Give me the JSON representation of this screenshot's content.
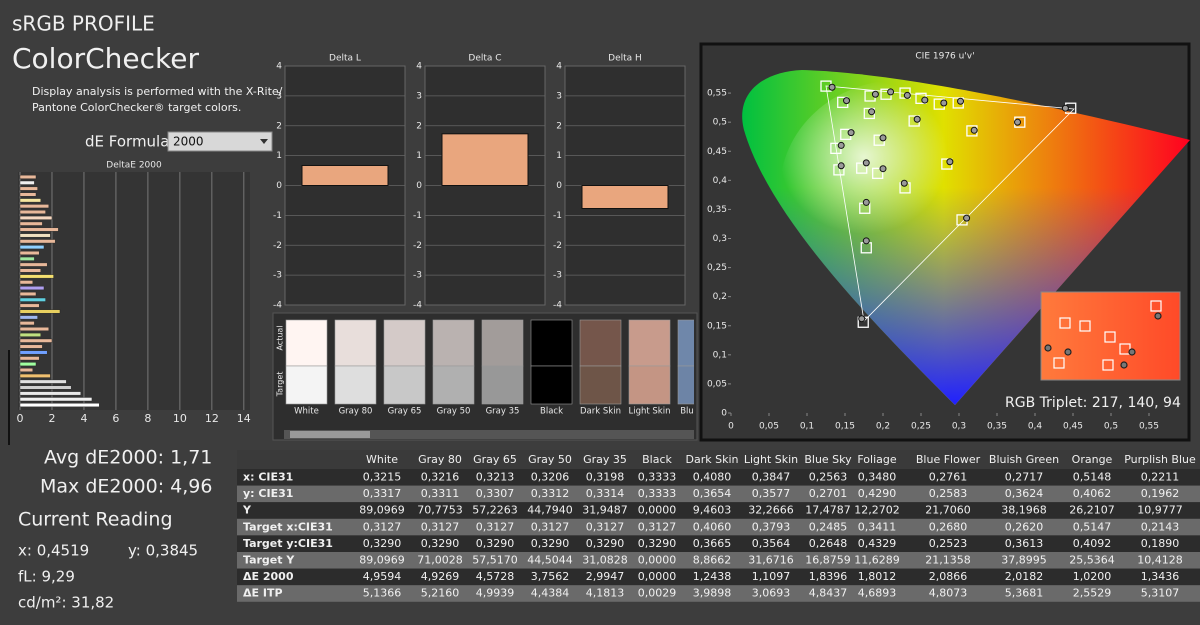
{
  "header": {
    "profile": "sRGB PROFILE",
    "title": "ColorChecker",
    "description": [
      "Display analysis is performed with the X-Rite/",
      "Pantone ColorChecker® target colors."
    ],
    "formula_label": "dE Formula:",
    "formula_value": "2000"
  },
  "summary": {
    "avg": "Avg dE2000: 1,71",
    "max": "Max dE2000: 4,96",
    "reading_title": "Current Reading",
    "x": "x: 0,4519",
    "y": "y: 0,3845",
    "fl": "fL: 9,29",
    "cdm2": "cd/m²: 31,82"
  },
  "chart_data": [
    {
      "type": "hbar",
      "title": "DeltaE 2000",
      "xlim": [
        0,
        14.2
      ],
      "xticks": [
        0,
        2,
        4,
        6,
        8,
        10,
        12,
        14
      ],
      "grid": true,
      "values": [
        1.0,
        0.9,
        1.1,
        1.0,
        1.3,
        1.8,
        1.6,
        2.0,
        1.4,
        2.4,
        1.9,
        2.2,
        1.5,
        1.2,
        0.9,
        1.7,
        1.3,
        2.1,
        0.8,
        1.5,
        1.0,
        1.6,
        1.2,
        2.5,
        1.1,
        0.9,
        1.8,
        1.3,
        2.0,
        1.4,
        1.7,
        1.2,
        1.0,
        0.8,
        1.9,
        2.9,
        3.2,
        3.8,
        4.5,
        4.96
      ],
      "colors": [
        "#e8b89a",
        "#f0f0f0",
        "#e8b89a",
        "#e8b89a",
        "#f5e6a0",
        "#e8b89a",
        "#e8b89a",
        "#f5d7c0",
        "#e8b89a",
        "#e8b89a",
        "#f0e0c0",
        "#e8b89a",
        "#8fd0ff",
        "#e8b89a",
        "#a0e8a0",
        "#e8b89a",
        "#e8b89a",
        "#f5e070",
        "#e8b89a",
        "#b0a0f0",
        "#e8b89a",
        "#60d0e0",
        "#e8b89a",
        "#e8d060",
        "#9fb8f0",
        "#e8b89a",
        "#e8b89a",
        "#c0e080",
        "#e8b89a",
        "#e8b89a",
        "#70a0ff",
        "#e8b89a",
        "#a0ffa0",
        "#e8b89a",
        "#f0c070",
        "#e0e0e0",
        "#d0d0d0",
        "#e8e8e8",
        "#f0f0f0",
        "#ffffff"
      ]
    },
    {
      "type": "vbar",
      "title": "Delta L",
      "ylim": [
        -4,
        4
      ],
      "yticks": [
        -4,
        -3,
        -2,
        -1,
        0,
        1,
        2,
        3,
        4
      ],
      "values": [
        0.67
      ],
      "color": "#e9a67e"
    },
    {
      "type": "vbar",
      "title": "Delta C",
      "ylim": [
        -4,
        4
      ],
      "yticks": [
        -4,
        -3,
        -2,
        -1,
        0,
        1,
        2,
        3,
        4
      ],
      "values": [
        1.73
      ],
      "color": "#e9a67e"
    },
    {
      "type": "vbar",
      "title": "Delta H",
      "ylim": [
        -4,
        4
      ],
      "yticks": [
        -4,
        -3,
        -2,
        -1,
        0,
        1,
        2,
        3,
        4
      ],
      "values": [
        -0.77
      ],
      "color": "#e9a67e"
    },
    {
      "type": "scatter",
      "title": "CIE 1976 u'v'",
      "xlim": [
        0,
        0.6
      ],
      "ylim": [
        0,
        0.6
      ],
      "xticks": [
        0,
        {
          "value": 0.05,
          "label": "0,05"
        },
        {
          "value": 0.1,
          "label": "0,1"
        },
        {
          "value": 0.15,
          "label": "0,15"
        },
        {
          "value": 0.2,
          "label": "0,2"
        },
        {
          "value": 0.25,
          "label": "0,25"
        },
        {
          "value": 0.3,
          "label": "0,3"
        },
        {
          "value": 0.35,
          "label": "0,35"
        },
        {
          "value": 0.4,
          "label": "0,4"
        },
        {
          "value": 0.45,
          "label": "0,45"
        },
        {
          "value": 0.5,
          "label": "0,5"
        },
        {
          "value": 0.55,
          "label": "0,55"
        }
      ],
      "yticks": [
        0,
        {
          "value": 0.05,
          "label": "0,05"
        },
        {
          "value": 0.1,
          "label": "0,1"
        },
        {
          "value": 0.15,
          "label": "0,15"
        },
        {
          "value": 0.2,
          "label": "0,2"
        },
        {
          "value": 0.25,
          "label": "0,25"
        },
        {
          "value": 0.3,
          "label": "0,3"
        },
        {
          "value": 0.35,
          "label": "0,35"
        },
        {
          "value": 0.4,
          "label": "0,4"
        },
        {
          "value": 0.45,
          "label": "0,45"
        },
        {
          "value": 0.5,
          "label": "0,5"
        },
        {
          "value": 0.55,
          "label": "0,55"
        }
      ],
      "series": [
        {
          "marker": "square",
          "color": "#ffffff",
          "x": [
            0.125,
            0.147,
            0.183,
            0.204,
            0.229,
            0.25,
            0.274,
            0.299,
            0.38,
            0.447,
            0.317,
            0.241,
            0.182,
            0.151,
            0.138,
            0.195,
            0.142,
            0.172,
            0.193,
            0.284,
            0.229,
            0.176,
            0.304,
            0.178,
            0.174
          ],
          "y": [
            0.562,
            0.534,
            0.545,
            0.548,
            0.55,
            0.541,
            0.531,
            0.533,
            0.5,
            0.524,
            0.485,
            0.502,
            0.515,
            0.479,
            0.455,
            0.469,
            0.418,
            0.421,
            0.412,
            0.428,
            0.387,
            0.352,
            0.332,
            0.284,
            0.156
          ]
        },
        {
          "marker": "circle",
          "color": "#9a9a9a",
          "x": [
            0.133,
            0.152,
            0.19,
            0.21,
            0.232,
            0.255,
            0.28,
            0.302,
            0.377,
            0.44,
            0.32,
            0.245,
            0.185,
            0.158,
            0.145,
            0.2,
            0.145,
            0.178,
            0.2,
            0.288,
            0.228,
            0.178,
            0.31,
            0.178,
            0.172
          ],
          "y": [
            0.56,
            0.537,
            0.548,
            0.552,
            0.546,
            0.538,
            0.533,
            0.536,
            0.5,
            0.524,
            0.486,
            0.505,
            0.518,
            0.482,
            0.46,
            0.473,
            0.425,
            0.43,
            0.42,
            0.432,
            0.395,
            0.362,
            0.335,
            0.296,
            0.162
          ]
        }
      ]
    }
  ],
  "inset_label": "RGB Triplet: 217, 140, 94",
  "swatches": {
    "actual_label": "Actual",
    "target_label": "Target",
    "names": [
      "White",
      "Gray 80",
      "Gray 65",
      "Gray 50",
      "Gray 35",
      "Black",
      "Dark Skin",
      "Light Skin",
      "Blue Sky"
    ],
    "actual_colors": [
      "#fff5f2",
      "#e8dedb",
      "#d4cac8",
      "#bab2b0",
      "#a29c9a",
      "#000000",
      "#75564b",
      "#c89b8c",
      "#6f87aa"
    ],
    "target_colors": [
      "#f4f4f4",
      "#dedede",
      "#c8c8c8",
      "#b0b0b0",
      "#989898",
      "#000000",
      "#6e5548",
      "#c49584",
      "#6d84a6"
    ]
  },
  "table": {
    "columns": [
      "White",
      "Gray 80",
      "Gray 65",
      "Gray 50",
      "Gray 35",
      "Black",
      "Dark Skin",
      "Light Skin",
      "Blue Sky",
      "Foliage",
      "Blue Flower",
      "Bluish Green",
      "Orange",
      "Purplish Blue"
    ],
    "rows": [
      [
        "x: CIE31",
        "0,3215",
        "0,3216",
        "0,3213",
        "0,3206",
        "0,3198",
        "0,3333",
        "0,4080",
        "0,3847",
        "0,2563",
        "0,3480",
        "0,2761",
        "0,2717",
        "0,5148",
        "0,2211"
      ],
      [
        "y: CIE31",
        "0,3317",
        "0,3311",
        "0,3307",
        "0,3312",
        "0,3314",
        "0,3333",
        "0,3654",
        "0,3577",
        "0,2701",
        "0,4290",
        "0,2583",
        "0,3624",
        "0,4062",
        "0,1962"
      ],
      [
        "Y",
        "89,0969",
        "70,7753",
        "57,2263",
        "44,7940",
        "31,9487",
        "0,0000",
        "9,4603",
        "32,2666",
        "17,4787",
        "12,2702",
        "21,7060",
        "38,1968",
        "26,2107",
        "10,9777"
      ],
      [
        "Target x:CIE31",
        "0,3127",
        "0,3127",
        "0,3127",
        "0,3127",
        "0,3127",
        "0,3127",
        "0,4060",
        "0,3793",
        "0,2485",
        "0,3411",
        "0,2680",
        "0,2620",
        "0,5147",
        "0,2143"
      ],
      [
        "Target y:CIE31",
        "0,3290",
        "0,3290",
        "0,3290",
        "0,3290",
        "0,3290",
        "0,3290",
        "0,3665",
        "0,3564",
        "0,2648",
        "0,4329",
        "0,2523",
        "0,3613",
        "0,4092",
        "0,1890"
      ],
      [
        "Target Y",
        "89,0969",
        "71,0028",
        "57,5170",
        "44,5044",
        "31,0828",
        "0,0000",
        "8,8662",
        "31,6716",
        "16,8759",
        "11,6289",
        "21,1358",
        "37,8995",
        "25,5364",
        "10,4128"
      ],
      [
        "ΔE 2000",
        "4,9594",
        "4,9269",
        "4,5728",
        "3,7562",
        "2,9947",
        "0,0000",
        "1,2438",
        "1,1097",
        "1,8396",
        "1,8012",
        "2,0866",
        "2,0182",
        "1,0200",
        "1,3436"
      ],
      [
        "ΔE ITP",
        "5,1366",
        "5,2160",
        "4,9939",
        "4,4384",
        "4,1813",
        "0,0029",
        "3,9898",
        "3,0693",
        "4,8437",
        "4,6893",
        "4,8073",
        "5,3681",
        "2,5529",
        "5,3107"
      ]
    ]
  }
}
